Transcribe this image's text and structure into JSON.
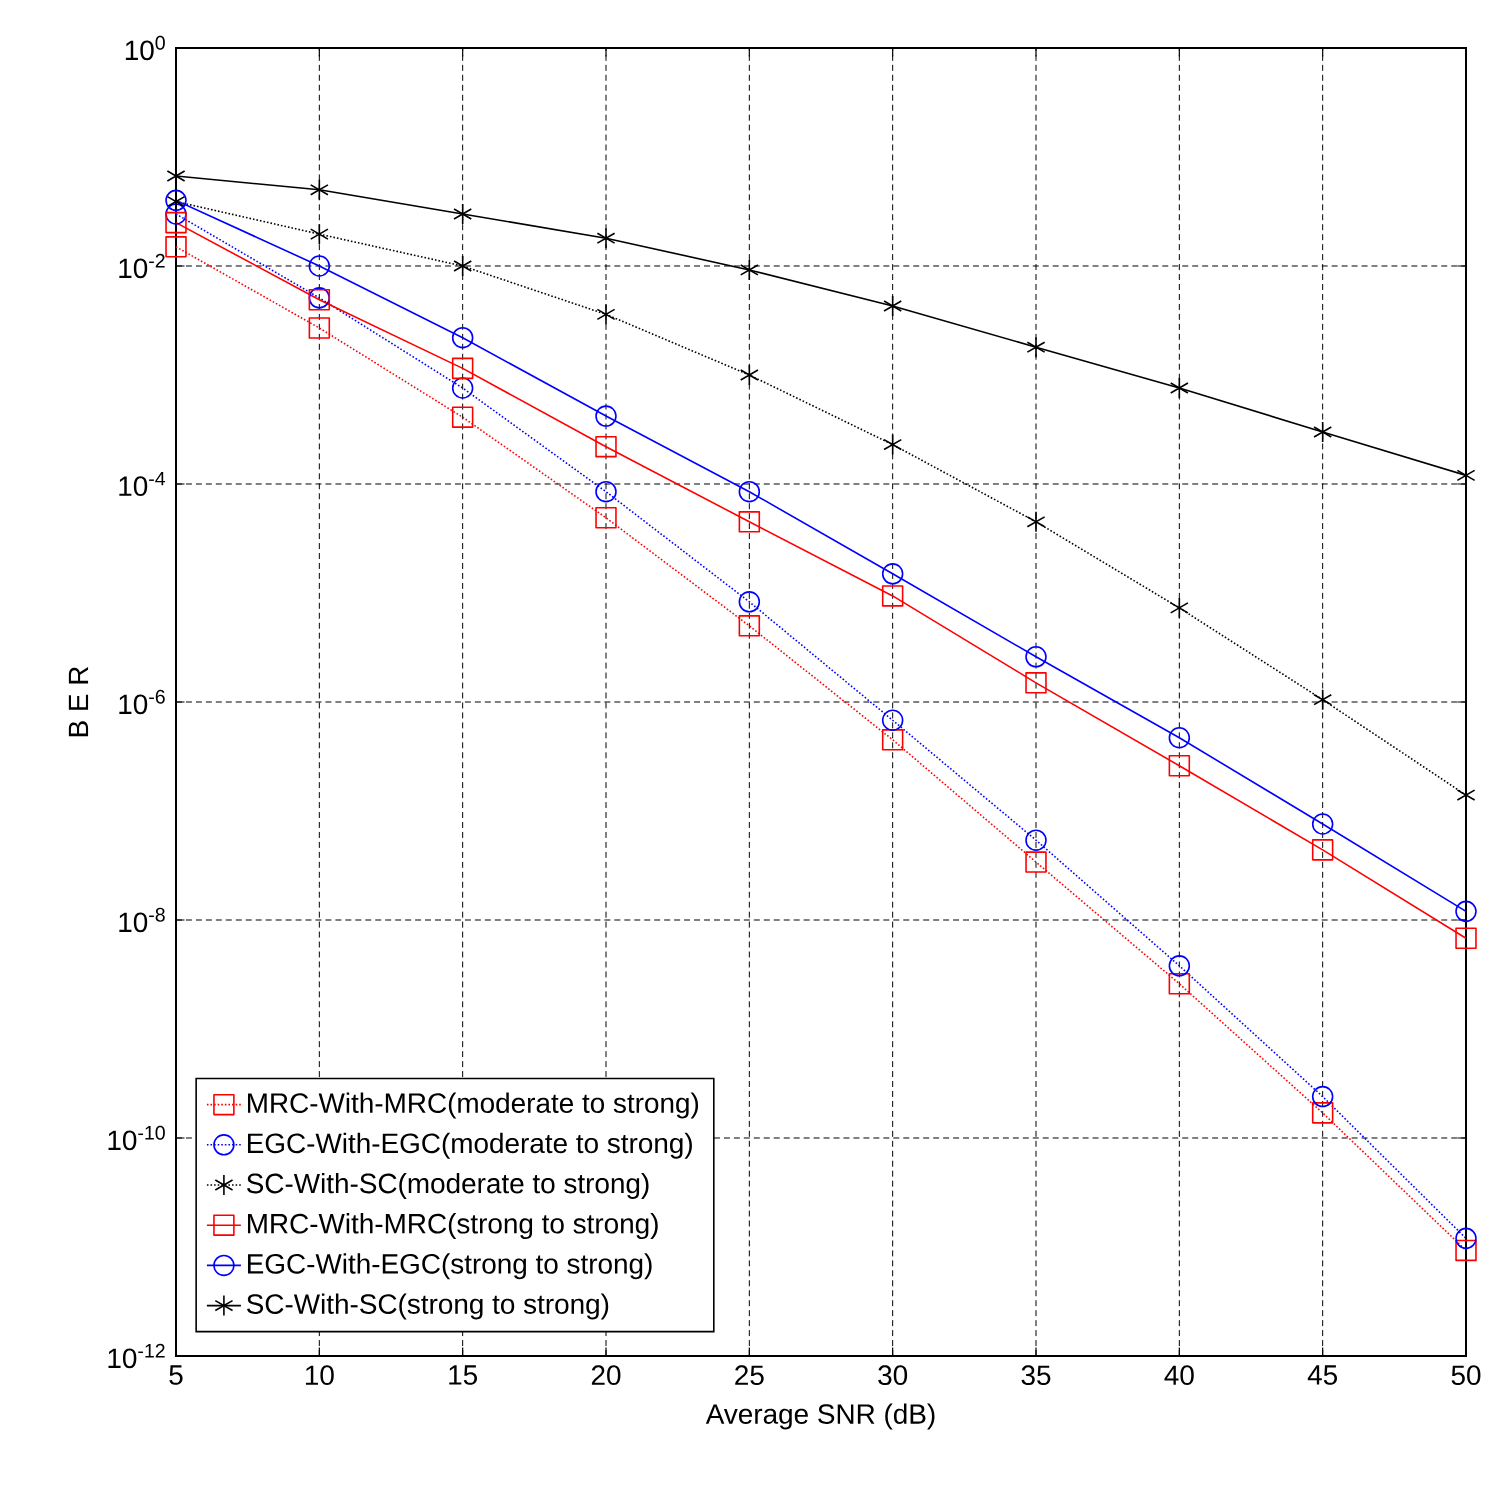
{
  "chart_data": {
    "type": "line",
    "xlabel": "Average SNR (dB)",
    "ylabel": "B E R",
    "log": "y",
    "grid": true,
    "legend": "bottom left",
    "x": [
      5,
      10,
      15,
      20,
      25,
      30,
      35,
      40,
      45,
      50
    ],
    "xlim": [
      5,
      50
    ],
    "xticks": [
      5,
      10,
      15,
      20,
      25,
      30,
      35,
      40,
      45,
      50
    ],
    "ylim": [
      1e-12,
      1
    ],
    "yticks": [
      {
        "value": 1e-12,
        "label": "10$^{-12}$"
      },
      {
        "value": 1e-10,
        "label": "10$^{-10}$"
      },
      {
        "value": 1e-08,
        "label": "10$^{-8}$"
      },
      {
        "value": 1e-06,
        "label": "10$^{-6}$"
      },
      {
        "value": 0.0001,
        "label": "10$^{-4}$"
      },
      {
        "value": 0.01,
        "label": "10$^{-2}$"
      },
      {
        "value": 1,
        "label": "10$^{0}$"
      }
    ],
    "series": [
      {
        "name": "MRC-With-MRC(moderate to strong)",
        "color": "#ff0000",
        "marker": "square",
        "line_style": "dotted",
        "values": [
          0.015,
          0.0027,
          0.00041,
          4.9e-05,
          5e-06,
          4.5e-07,
          3.4e-08,
          2.6e-09,
          1.7e-10,
          9.3e-12
        ]
      },
      {
        "name": "EGC-With-EGC(moderate to strong)",
        "color": "#0000ff",
        "marker": "circle",
        "line_style": "dotted",
        "values": [
          0.03,
          0.0051,
          0.00076,
          8.5e-05,
          8.3e-06,
          6.8e-07,
          5.4e-08,
          3.8e-09,
          2.4e-10,
          1.2e-11
        ]
      },
      {
        "name": "SC-With-SC(moderate to strong)",
        "color": "#000000",
        "marker": "cross",
        "line_style": "dotted",
        "values": [
          0.039,
          0.0196,
          0.01,
          0.0036,
          0.001,
          0.00023,
          4.5e-05,
          7.3e-06,
          1.05e-06,
          1.4e-07
        ]
      },
      {
        "name": "MRC-With-MRC(strong to strong)",
        "color": "#ff0000",
        "marker": "square",
        "line_style": "solid",
        "values": [
          0.025,
          0.0049,
          0.00115,
          0.00022,
          4.5e-05,
          9.4e-06,
          1.5e-06,
          2.6e-07,
          4.4e-08,
          6.8e-09
        ]
      },
      {
        "name": "EGC-With-EGC(strong to strong)",
        "color": "#0000ff",
        "marker": "circle",
        "line_style": "solid",
        "values": [
          0.04,
          0.01,
          0.0022,
          0.00042,
          8.5e-05,
          1.5e-05,
          2.6e-06,
          4.7e-07,
          7.6e-08,
          1.2e-08
        ]
      },
      {
        "name": "SC-With-SC(strong to strong)",
        "color": "#000000",
        "marker": "cross",
        "line_style": "solid",
        "values": [
          0.067,
          0.05,
          0.03,
          0.018,
          0.0092,
          0.0043,
          0.0018,
          0.00076,
          0.0003,
          0.00012
        ]
      }
    ]
  }
}
